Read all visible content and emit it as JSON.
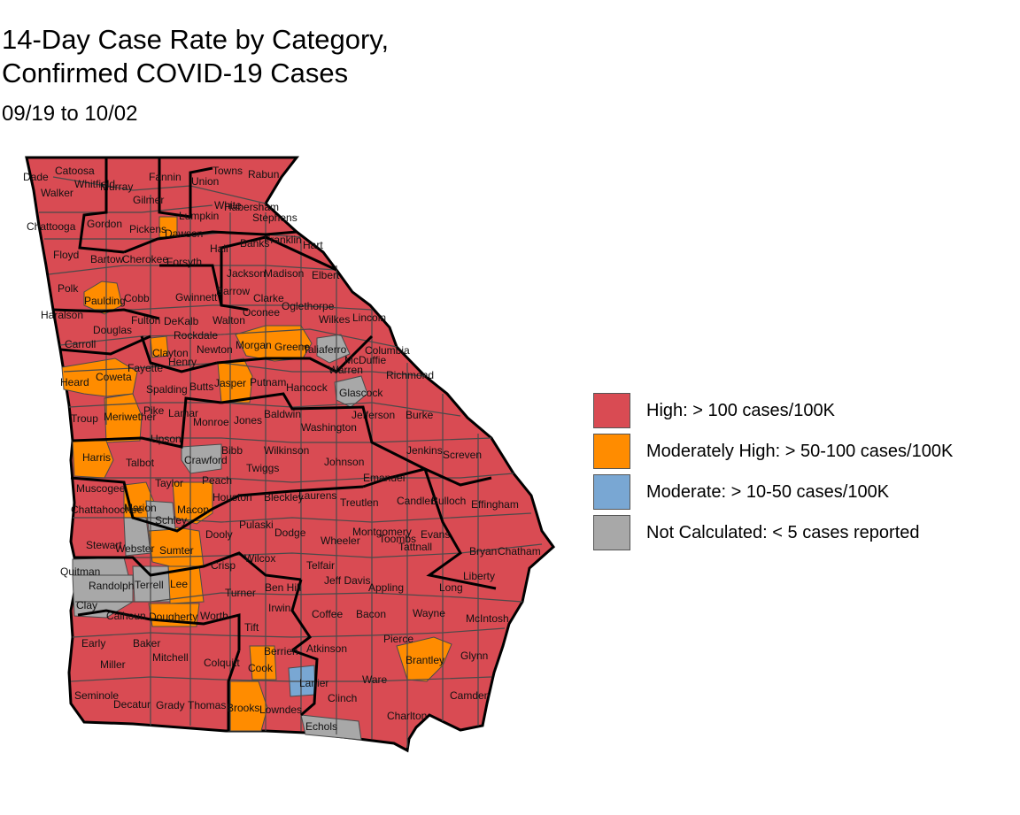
{
  "title_lines": [
    "14-Day Case Rate by Category,",
    "Confirmed COVID-19 Cases"
  ],
  "subtitle": "09/19 to 10/02",
  "colors": {
    "high": "#d94b53",
    "moderately_high": "#ff8c00",
    "moderate": "#79a7d3",
    "not_calculated": "#a8a8a8",
    "county_border": "#4a4a4a",
    "district_border": "#000000"
  },
  "legend": [
    {
      "key": "high",
      "label": "High: > 100 cases/100K"
    },
    {
      "key": "moderately_high",
      "label": "Moderately High: > 50-100 cases/100K"
    },
    {
      "key": "moderate",
      "label": "Moderate: > 10-50 cases/100K"
    },
    {
      "key": "not_calculated",
      "label": "Not Calculated: < 5 cases reported"
    }
  ],
  "counties": [
    {
      "name": "Catoosa",
      "category": "high"
    },
    {
      "name": "Dade",
      "category": "high"
    },
    {
      "name": "Walker",
      "category": "high"
    },
    {
      "name": "Whitfield",
      "category": "high"
    },
    {
      "name": "Murray",
      "category": "high"
    },
    {
      "name": "Fannin",
      "category": "high"
    },
    {
      "name": "Union",
      "category": "high"
    },
    {
      "name": "Towns",
      "category": "high"
    },
    {
      "name": "Rabun",
      "category": "high"
    },
    {
      "name": "Gilmer",
      "category": "high"
    },
    {
      "name": "White",
      "category": "high"
    },
    {
      "name": "Habersham",
      "category": "high"
    },
    {
      "name": "Stephens",
      "category": "high"
    },
    {
      "name": "Lumpkin",
      "category": "high"
    },
    {
      "name": "Chattooga",
      "category": "high"
    },
    {
      "name": "Gordon",
      "category": "high"
    },
    {
      "name": "Pickens",
      "category": "moderately_high"
    },
    {
      "name": "Dawson",
      "category": "high"
    },
    {
      "name": "Hall",
      "category": "high"
    },
    {
      "name": "Banks",
      "category": "high"
    },
    {
      "name": "Franklin",
      "category": "high"
    },
    {
      "name": "Hart",
      "category": "high"
    },
    {
      "name": "Floyd",
      "category": "high"
    },
    {
      "name": "Bartow",
      "category": "high"
    },
    {
      "name": "Cherokee",
      "category": "high"
    },
    {
      "name": "Forsyth",
      "category": "high"
    },
    {
      "name": "Jackson",
      "category": "high"
    },
    {
      "name": "Madison",
      "category": "high"
    },
    {
      "name": "Elbert",
      "category": "high"
    },
    {
      "name": "Polk",
      "category": "high"
    },
    {
      "name": "Paulding",
      "category": "moderately_high"
    },
    {
      "name": "Cobb",
      "category": "high"
    },
    {
      "name": "Gwinnett",
      "category": "high"
    },
    {
      "name": "Barrow",
      "category": "high"
    },
    {
      "name": "Clarke",
      "category": "high"
    },
    {
      "name": "Oglethorpe",
      "category": "high"
    },
    {
      "name": "Oconee",
      "category": "high"
    },
    {
      "name": "Wilkes",
      "category": "high"
    },
    {
      "name": "Lincoln",
      "category": "high"
    },
    {
      "name": "Haralson",
      "category": "high"
    },
    {
      "name": "Fulton",
      "category": "high"
    },
    {
      "name": "DeKalb",
      "category": "high"
    },
    {
      "name": "Douglas",
      "category": "high"
    },
    {
      "name": "Walton",
      "category": "high"
    },
    {
      "name": "Rockdale",
      "category": "high"
    },
    {
      "name": "Carroll",
      "category": "high"
    },
    {
      "name": "Clayton",
      "category": "moderately_high"
    },
    {
      "name": "Newton",
      "category": "high"
    },
    {
      "name": "Morgan",
      "category": "moderately_high"
    },
    {
      "name": "Greene",
      "category": "moderately_high"
    },
    {
      "name": "Taliaferro",
      "category": "not_calculated"
    },
    {
      "name": "Warren",
      "category": "high"
    },
    {
      "name": "McDuffie",
      "category": "high"
    },
    {
      "name": "Columbia",
      "category": "high"
    },
    {
      "name": "Fayette",
      "category": "high"
    },
    {
      "name": "Henry",
      "category": "high"
    },
    {
      "name": "Coweta",
      "category": "moderately_high"
    },
    {
      "name": "Heard",
      "category": "moderately_high"
    },
    {
      "name": "Spalding",
      "category": "high"
    },
    {
      "name": "Butts",
      "category": "high"
    },
    {
      "name": "Jasper",
      "category": "moderately_high"
    },
    {
      "name": "Putnam",
      "category": "high"
    },
    {
      "name": "Hancock",
      "category": "high"
    },
    {
      "name": "Glascock",
      "category": "not_calculated"
    },
    {
      "name": "Richmond",
      "category": "high"
    },
    {
      "name": "Troup",
      "category": "high"
    },
    {
      "name": "Meriwether",
      "category": "moderately_high"
    },
    {
      "name": "Pike",
      "category": "high"
    },
    {
      "name": "Lamar",
      "category": "high"
    },
    {
      "name": "Monroe",
      "category": "high"
    },
    {
      "name": "Jones",
      "category": "high"
    },
    {
      "name": "Baldwin",
      "category": "high"
    },
    {
      "name": "Washington",
      "category": "high"
    },
    {
      "name": "Jefferson",
      "category": "high"
    },
    {
      "name": "Burke",
      "category": "high"
    },
    {
      "name": "Upson",
      "category": "high"
    },
    {
      "name": "Harris",
      "category": "moderately_high"
    },
    {
      "name": "Talbot",
      "category": "high"
    },
    {
      "name": "Crawford",
      "category": "not_calculated"
    },
    {
      "name": "Bibb",
      "category": "high"
    },
    {
      "name": "Wilkinson",
      "category": "high"
    },
    {
      "name": "Twiggs",
      "category": "high"
    },
    {
      "name": "Johnson",
      "category": "high"
    },
    {
      "name": "Jenkins",
      "category": "high"
    },
    {
      "name": "Screven",
      "category": "high"
    },
    {
      "name": "Muscogee",
      "category": "high"
    },
    {
      "name": "Taylor",
      "category": "high"
    },
    {
      "name": "Peach",
      "category": "high"
    },
    {
      "name": "Emanuel",
      "category": "high"
    },
    {
      "name": "Chattahoochee",
      "category": "high"
    },
    {
      "name": "Marion",
      "category": "moderately_high"
    },
    {
      "name": "Schley",
      "category": "not_calculated"
    },
    {
      "name": "Macon",
      "category": "moderately_high"
    },
    {
      "name": "Houston",
      "category": "high"
    },
    {
      "name": "Bleckley",
      "category": "high"
    },
    {
      "name": "Laurens",
      "category": "high"
    },
    {
      "name": "Treutlen",
      "category": "high"
    },
    {
      "name": "Candler",
      "category": "high"
    },
    {
      "name": "Bulloch",
      "category": "high"
    },
    {
      "name": "Effingham",
      "category": "high"
    },
    {
      "name": "Stewart",
      "category": "high"
    },
    {
      "name": "Webster",
      "category": "not_calculated"
    },
    {
      "name": "Sumter",
      "category": "moderately_high"
    },
    {
      "name": "Dooly",
      "category": "high"
    },
    {
      "name": "Pulaski",
      "category": "high"
    },
    {
      "name": "Dodge",
      "category": "high"
    },
    {
      "name": "Wheeler",
      "category": "high"
    },
    {
      "name": "Montgomery",
      "category": "high"
    },
    {
      "name": "Toombs",
      "category": "high"
    },
    {
      "name": "Evans",
      "category": "high"
    },
    {
      "name": "Tattnall",
      "category": "high"
    },
    {
      "name": "Bryan",
      "category": "high"
    },
    {
      "name": "Chatham",
      "category": "high"
    },
    {
      "name": "Quitman",
      "category": "not_calculated"
    },
    {
      "name": "Crisp",
      "category": "high"
    },
    {
      "name": "Wilcox",
      "category": "high"
    },
    {
      "name": "Telfair",
      "category": "high"
    },
    {
      "name": "Liberty",
      "category": "high"
    },
    {
      "name": "Randolph",
      "category": "not_calculated"
    },
    {
      "name": "Terrell",
      "category": "not_calculated"
    },
    {
      "name": "Lee",
      "category": "moderately_high"
    },
    {
      "name": "Turner",
      "category": "high"
    },
    {
      "name": "Ben Hill",
      "category": "high"
    },
    {
      "name": "Jeff Davis",
      "category": "high"
    },
    {
      "name": "Appling",
      "category": "high"
    },
    {
      "name": "Long",
      "category": "high"
    },
    {
      "name": "Clay",
      "category": "not_calculated"
    },
    {
      "name": "Calhoun",
      "category": "high"
    },
    {
      "name": "Dougherty",
      "category": "moderately_high"
    },
    {
      "name": "Worth",
      "category": "high"
    },
    {
      "name": "Irwin",
      "category": "high"
    },
    {
      "name": "Coffee",
      "category": "high"
    },
    {
      "name": "Bacon",
      "category": "high"
    },
    {
      "name": "Wayne",
      "category": "high"
    },
    {
      "name": "McIntosh",
      "category": "high"
    },
    {
      "name": "Tift",
      "category": "high"
    },
    {
      "name": "Pierce",
      "category": "high"
    },
    {
      "name": "Early",
      "category": "high"
    },
    {
      "name": "Baker",
      "category": "high"
    },
    {
      "name": "Berrien",
      "category": "high"
    },
    {
      "name": "Atkinson",
      "category": "high"
    },
    {
      "name": "Miller",
      "category": "high"
    },
    {
      "name": "Mitchell",
      "category": "high"
    },
    {
      "name": "Colquitt",
      "category": "high"
    },
    {
      "name": "Cook",
      "category": "moderately_high"
    },
    {
      "name": "Brantley",
      "category": "moderately_high"
    },
    {
      "name": "Glynn",
      "category": "high"
    },
    {
      "name": "Lanier",
      "category": "moderate"
    },
    {
      "name": "Ware",
      "category": "high"
    },
    {
      "name": "Seminole",
      "category": "high"
    },
    {
      "name": "Camden",
      "category": "high"
    },
    {
      "name": "Decatur",
      "category": "high"
    },
    {
      "name": "Grady",
      "category": "high"
    },
    {
      "name": "Thomas",
      "category": "high"
    },
    {
      "name": "Brooks",
      "category": "moderately_high"
    },
    {
      "name": "Lowndes",
      "category": "high"
    },
    {
      "name": "Clinch",
      "category": "high"
    },
    {
      "name": "Charlton",
      "category": "high"
    },
    {
      "name": "Echols",
      "category": "not_calculated"
    }
  ]
}
